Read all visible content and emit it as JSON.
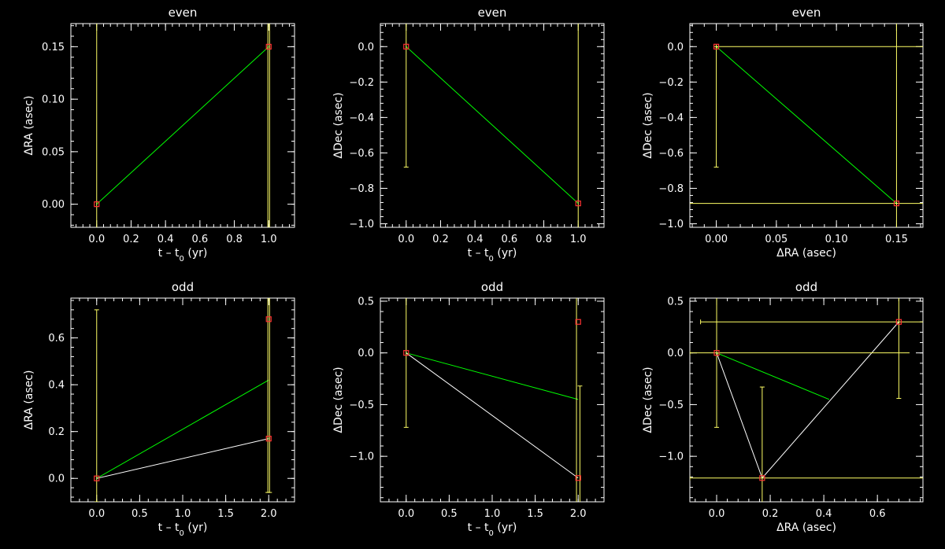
{
  "colors": {
    "background": "#000000",
    "axes": "#ffffff",
    "errorbar": "#ffff66",
    "marker": "#ff3333",
    "fit_line": "#00ff00",
    "data_line": "#ffffff"
  },
  "chart_data": [
    {
      "type": "scatter",
      "title": "even",
      "xlabel": "t – t",
      "xlabel_sub": "0",
      "xlabel_suffix": " (yr)",
      "ylabel": "ΔRA (asec)",
      "xlim": [
        -0.15,
        1.15
      ],
      "ylim": [
        -0.022,
        0.172
      ],
      "xticks": [
        0.0,
        0.2,
        0.4,
        0.6,
        0.8,
        1.0
      ],
      "xtick_labels": [
        "0.0",
        "0.2",
        "0.4",
        "0.6",
        "0.8",
        "1.0"
      ],
      "yticks": [
        0.0,
        0.05,
        0.1,
        0.15
      ],
      "ytick_labels": [
        "0.00",
        "0.05",
        "0.10",
        "0.15"
      ],
      "points": [
        {
          "x": 0.0,
          "y": 0.0
        },
        {
          "x": 1.0,
          "y": 0.15
        }
      ],
      "yerr": [
        {
          "x": 0.0,
          "y": 0.0,
          "lo": -0.03,
          "hi": 0.2
        },
        {
          "x": 0.995,
          "y": 0.15,
          "lo": -0.03,
          "hi": 0.2
        },
        {
          "x": 1.005,
          "y": 0.15,
          "lo": -0.03,
          "hi": 0.2
        }
      ],
      "xerr": [],
      "green_line": [
        [
          0.0,
          0.0
        ],
        [
          1.0,
          0.15
        ]
      ],
      "white_line": []
    },
    {
      "type": "scatter",
      "title": "even",
      "xlabel": "t – t",
      "xlabel_sub": "0",
      "xlabel_suffix": " (yr)",
      "ylabel": "ΔDec (asec)",
      "xlim": [
        -0.15,
        1.15
      ],
      "ylim": [
        -1.02,
        0.13
      ],
      "xticks": [
        0.0,
        0.2,
        0.4,
        0.6,
        0.8,
        1.0
      ],
      "xtick_labels": [
        "0.0",
        "0.2",
        "0.4",
        "0.6",
        "0.8",
        "1.0"
      ],
      "yticks": [
        -1.0,
        -0.8,
        -0.6,
        -0.4,
        -0.2,
        0.0
      ],
      "ytick_labels": [
        "−1.0",
        "−0.8",
        "−0.6",
        "−0.4",
        "−0.2",
        "0.0"
      ],
      "points": [
        {
          "x": 0.0,
          "y": 0.0
        },
        {
          "x": 1.0,
          "y": -0.885
        }
      ],
      "yerr": [
        {
          "x": 0.0,
          "y": 0.0,
          "lo": -0.68,
          "hi": 0.2
        },
        {
          "x": 1.0,
          "y": -0.885,
          "lo": -1.1,
          "hi": 0.2
        }
      ],
      "xerr": [],
      "green_line": [
        [
          0.0,
          0.0
        ],
        [
          1.0,
          -0.885
        ]
      ],
      "white_line": []
    },
    {
      "type": "scatter",
      "title": "even",
      "xlabel": "ΔRA (asec)",
      "xlabel_sub": "",
      "xlabel_suffix": "",
      "ylabel": "ΔDec (asec)",
      "xlim": [
        -0.022,
        0.172
      ],
      "ylim": [
        -1.02,
        0.13
      ],
      "xticks": [
        0.0,
        0.05,
        0.1,
        0.15
      ],
      "xtick_labels": [
        "0.00",
        "0.05",
        "0.10",
        "0.15"
      ],
      "yticks": [
        -1.0,
        -0.8,
        -0.6,
        -0.4,
        -0.2,
        0.0
      ],
      "ytick_labels": [
        "−1.0",
        "−0.8",
        "−0.6",
        "−0.4",
        "−0.2",
        "0.0"
      ],
      "points": [
        {
          "x": 0.0,
          "y": 0.0
        },
        {
          "x": 0.15,
          "y": -0.885
        }
      ],
      "yerr": [
        {
          "x": 0.0,
          "y": 0.0,
          "lo": -0.68,
          "hi": 0.0
        },
        {
          "x": 0.15,
          "y": -0.885,
          "lo": -1.1,
          "hi": 0.2
        }
      ],
      "xerr": [
        {
          "x": 0.0,
          "y": 0.0,
          "lo": 0.0,
          "hi": 0.2
        },
        {
          "x": 0.15,
          "y": -0.885,
          "lo": -0.03,
          "hi": 0.2
        }
      ],
      "green_line": [
        [
          0.0,
          0.0
        ],
        [
          0.15,
          -0.885
        ]
      ],
      "white_line": []
    },
    {
      "type": "scatter",
      "title": "odd",
      "xlabel": "t – t",
      "xlabel_sub": "0",
      "xlabel_suffix": " (yr)",
      "ylabel": "ΔRA (asec)",
      "xlim": [
        -0.3,
        2.3
      ],
      "ylim": [
        -0.1,
        0.77
      ],
      "xticks": [
        0.0,
        0.5,
        1.0,
        1.5,
        2.0
      ],
      "xtick_labels": [
        "0.0",
        "0.5",
        "1.0",
        "1.5",
        "2.0"
      ],
      "yticks": [
        0.0,
        0.2,
        0.4,
        0.6
      ],
      "ytick_labels": [
        "0.0",
        "0.2",
        "0.4",
        "0.6"
      ],
      "points": [
        {
          "x": 0.0,
          "y": 0.0
        },
        {
          "x": 2.0,
          "y": 0.68
        },
        {
          "x": 2.0,
          "y": 0.17
        }
      ],
      "yerr": [
        {
          "x": 0.0,
          "y": 0.0,
          "lo": -0.1,
          "hi": 0.72
        },
        {
          "x": 1.99,
          "y": 0.68,
          "lo": -0.06,
          "hi": 1.0
        },
        {
          "x": 2.01,
          "y": 0.17,
          "lo": -0.06,
          "hi": 1.0
        }
      ],
      "xerr": [],
      "green_line": [
        [
          0.0,
          0.0
        ],
        [
          2.0,
          0.42
        ]
      ],
      "white_line": [
        [
          0.0,
          0.0
        ],
        [
          2.0,
          0.17
        ]
      ]
    },
    {
      "type": "scatter",
      "title": "odd",
      "xlabel": "t – t",
      "xlabel_sub": "0",
      "xlabel_suffix": " (yr)",
      "ylabel": "ΔDec (asec)",
      "xlim": [
        -0.3,
        2.3
      ],
      "ylim": [
        -1.44,
        0.53
      ],
      "xticks": [
        0.0,
        0.5,
        1.0,
        1.5,
        2.0
      ],
      "xtick_labels": [
        "0.0",
        "0.5",
        "1.0",
        "1.5",
        "2.0"
      ],
      "yticks": [
        -1.0,
        -0.5,
        0.0,
        0.5
      ],
      "ytick_labels": [
        "−1.0",
        "−0.5",
        "0.0",
        "0.5"
      ],
      "points": [
        {
          "x": 0.0,
          "y": 0.0
        },
        {
          "x": 2.0,
          "y": 0.3
        },
        {
          "x": 2.0,
          "y": -1.21
        }
      ],
      "yerr": [
        {
          "x": 0.0,
          "y": 0.0,
          "lo": -0.72,
          "hi": 0.6
        },
        {
          "x": 1.98,
          "y": 0.3,
          "lo": -1.5,
          "hi": 0.6
        },
        {
          "x": 2.02,
          "y": -0.45,
          "lo": -1.5,
          "hi": -0.32
        }
      ],
      "xerr": [],
      "green_line": [
        [
          0.0,
          0.0
        ],
        [
          2.0,
          -0.45
        ]
      ],
      "white_line": [
        [
          0.0,
          0.0
        ],
        [
          2.0,
          -1.21
        ]
      ]
    },
    {
      "type": "scatter",
      "title": "odd",
      "xlabel": "ΔRA (asec)",
      "xlabel_sub": "",
      "xlabel_suffix": "",
      "ylabel": "ΔDec (asec)",
      "xlim": [
        -0.1,
        0.77
      ],
      "ylim": [
        -1.44,
        0.53
      ],
      "xticks": [
        0.0,
        0.2,
        0.4,
        0.6
      ],
      "xtick_labels": [
        "0.0",
        "0.2",
        "0.4",
        "0.6"
      ],
      "yticks": [
        -1.0,
        -0.5,
        0.0,
        0.5
      ],
      "ytick_labels": [
        "−1.0",
        "−0.5",
        "0.0",
        "0.5"
      ],
      "points": [
        {
          "x": 0.0,
          "y": 0.0
        },
        {
          "x": 0.17,
          "y": -1.21
        },
        {
          "x": 0.68,
          "y": 0.3
        }
      ],
      "yerr": [
        {
          "x": 0.0,
          "y": 0.0,
          "lo": -0.72,
          "hi": 0.6
        },
        {
          "x": 0.17,
          "y": -1.21,
          "lo": -1.5,
          "hi": -0.33
        },
        {
          "x": 0.68,
          "y": 0.3,
          "lo": -0.44,
          "hi": 0.6
        }
      ],
      "xerr": [
        {
          "x": 0.0,
          "y": 0.0,
          "lo": -0.1,
          "hi": 0.72
        },
        {
          "x": 0.17,
          "y": -1.21,
          "lo": -0.1,
          "hi": 0.8
        },
        {
          "x": 0.68,
          "y": 0.3,
          "lo": -0.06,
          "hi": 0.8
        }
      ],
      "green_line": [
        [
          0.0,
          0.0
        ],
        [
          0.42,
          -0.45
        ]
      ],
      "white_line": [
        [
          0.17,
          -1.21
        ],
        [
          0.0,
          0.0
        ],
        [
          0.17,
          -1.21
        ],
        [
          0.68,
          0.3
        ]
      ]
    }
  ]
}
